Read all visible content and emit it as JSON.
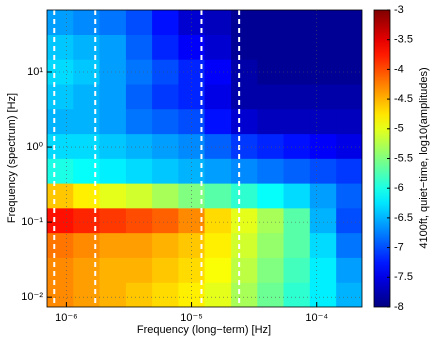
{
  "chart_data": {
    "type": "heatmap",
    "x_label": "Frequency (long−term) [Hz]",
    "y_label": "Frequency (spectrum) [Hz]",
    "colorbar_label": "4100ft, quiet−time, log10(amplitudes)",
    "xscale": "log",
    "yscale": "log",
    "grid": true,
    "colormap": "jet",
    "xlim": [
      7e-07,
      0.00023
    ],
    "ylim": [
      0.0074,
      67
    ],
    "clim": [
      -8,
      -3
    ],
    "xticks": [
      {
        "value": 1e-06,
        "label": "10⁻⁶"
      },
      {
        "value": 1e-05,
        "label": "10⁻⁵"
      },
      {
        "value": 0.0001,
        "label": "10⁻⁴"
      }
    ],
    "yticks": [
      {
        "value": 0.01,
        "label": "10⁻²"
      },
      {
        "value": 0.1,
        "label": "10⁻¹"
      },
      {
        "value": 1,
        "label": "10⁰"
      },
      {
        "value": 10,
        "label": "10¹"
      }
    ],
    "cticks": [
      -3,
      -3.5,
      -4,
      -4.5,
      -5,
      -5.5,
      -6,
      -6.5,
      -7,
      -7.5,
      -8
    ],
    "vlines": [
      8e-07,
      1.7e-06,
      1.2e-05,
      2.4e-05
    ],
    "xbins": [
      7e-07,
      1.135e-06,
      1.84e-06,
      2.99e-06,
      4.84e-06,
      7.85e-06,
      1.27e-05,
      2.07e-05,
      3.35e-05,
      5.43e-05,
      8.81e-05,
      0.000143,
      0.00023
    ],
    "ybins": [
      0.0074,
      0.0158,
      0.0339,
      0.0724,
      0.155,
      0.331,
      0.708,
      1.51,
      3.24,
      6.92,
      14.8,
      31.6,
      67
    ],
    "z": [
      [
        -4.3,
        -4.4,
        -4.5,
        -4.6,
        -4.7,
        -4.8,
        -5.0,
        -5.3,
        -5.6,
        -5.9,
        -6.2,
        -6.5
      ],
      [
        -4.3,
        -4.4,
        -4.5,
        -4.5,
        -4.6,
        -4.7,
        -4.9,
        -5.2,
        -5.5,
        -5.8,
        -6.2,
        -6.6
      ],
      [
        -4.2,
        -4.3,
        -4.4,
        -4.4,
        -4.5,
        -4.6,
        -4.8,
        -5.1,
        -5.4,
        -5.7,
        -6.3,
        -6.8
      ],
      [
        -3.7,
        -3.8,
        -3.9,
        -4.0,
        -4.1,
        -4.3,
        -4.7,
        -5.0,
        -5.3,
        -5.7,
        -6.5,
        -7.0
      ],
      [
        -4.6,
        -4.8,
        -5.0,
        -5.1,
        -5.3,
        -5.5,
        -5.7,
        -5.9,
        -6.1,
        -6.3,
        -6.6,
        -6.9
      ],
      [
        -6.0,
        -6.1,
        -6.2,
        -6.3,
        -6.4,
        -6.5,
        -6.6,
        -6.7,
        -6.8,
        -6.9,
        -7.0,
        -7.1
      ],
      [
        -6.3,
        -6.3,
        -6.4,
        -6.5,
        -6.6,
        -6.7,
        -6.9,
        -7.1,
        -7.2,
        -7.3,
        -7.4,
        -7.5
      ],
      [
        -6.5,
        -6.5,
        -6.6,
        -6.8,
        -6.9,
        -7.0,
        -7.3,
        -7.6,
        -7.7,
        -7.7,
        -7.7,
        -7.7
      ],
      [
        -6.4,
        -6.5,
        -6.6,
        -6.9,
        -7.1,
        -7.2,
        -7.5,
        -7.8,
        -7.8,
        -7.8,
        -7.8,
        -7.8
      ],
      [
        -6.3,
        -6.4,
        -6.6,
        -6.8,
        -7.0,
        -7.2,
        -7.4,
        -7.8,
        -7.9,
        -7.9,
        -7.9,
        -7.9
      ],
      [
        -6.4,
        -6.5,
        -6.6,
        -6.9,
        -7.2,
        -7.4,
        -7.6,
        -7.9,
        -7.9,
        -7.9,
        -7.9,
        -7.9
      ],
      [
        -6.6,
        -6.7,
        -6.8,
        -7.0,
        -7.3,
        -7.6,
        -7.7,
        -7.9,
        -7.9,
        -7.9,
        -7.9,
        -7.9
      ]
    ]
  }
}
